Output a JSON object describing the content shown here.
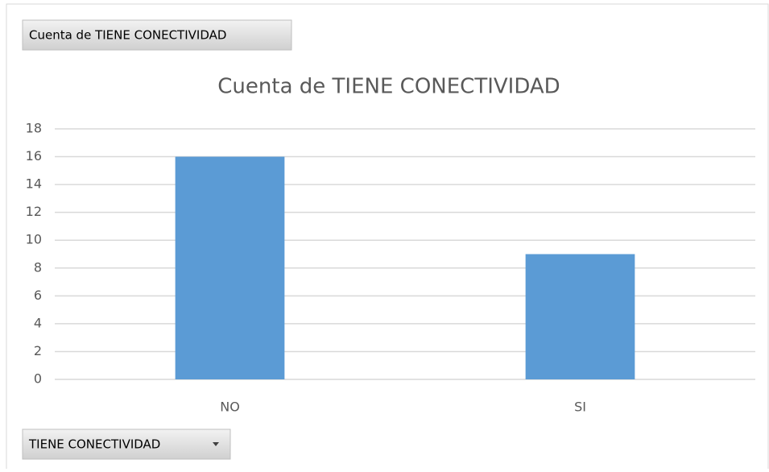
{
  "pivot_buttons": {
    "value_field": "Cuenta de TIENE CONECTIVIDAD",
    "axis_field": "TIENE CONECTIVIDAD"
  },
  "chart_data": {
    "type": "bar",
    "title": "Cuenta de TIENE CONECTIVIDAD",
    "categories": [
      "NO",
      "SI"
    ],
    "values": [
      16,
      9
    ],
    "color": "#5b9bd5",
    "ylim": [
      0,
      18
    ],
    "yticks": [
      0,
      2,
      4,
      6,
      8,
      10,
      12,
      14,
      16,
      18
    ],
    "grid": true
  }
}
